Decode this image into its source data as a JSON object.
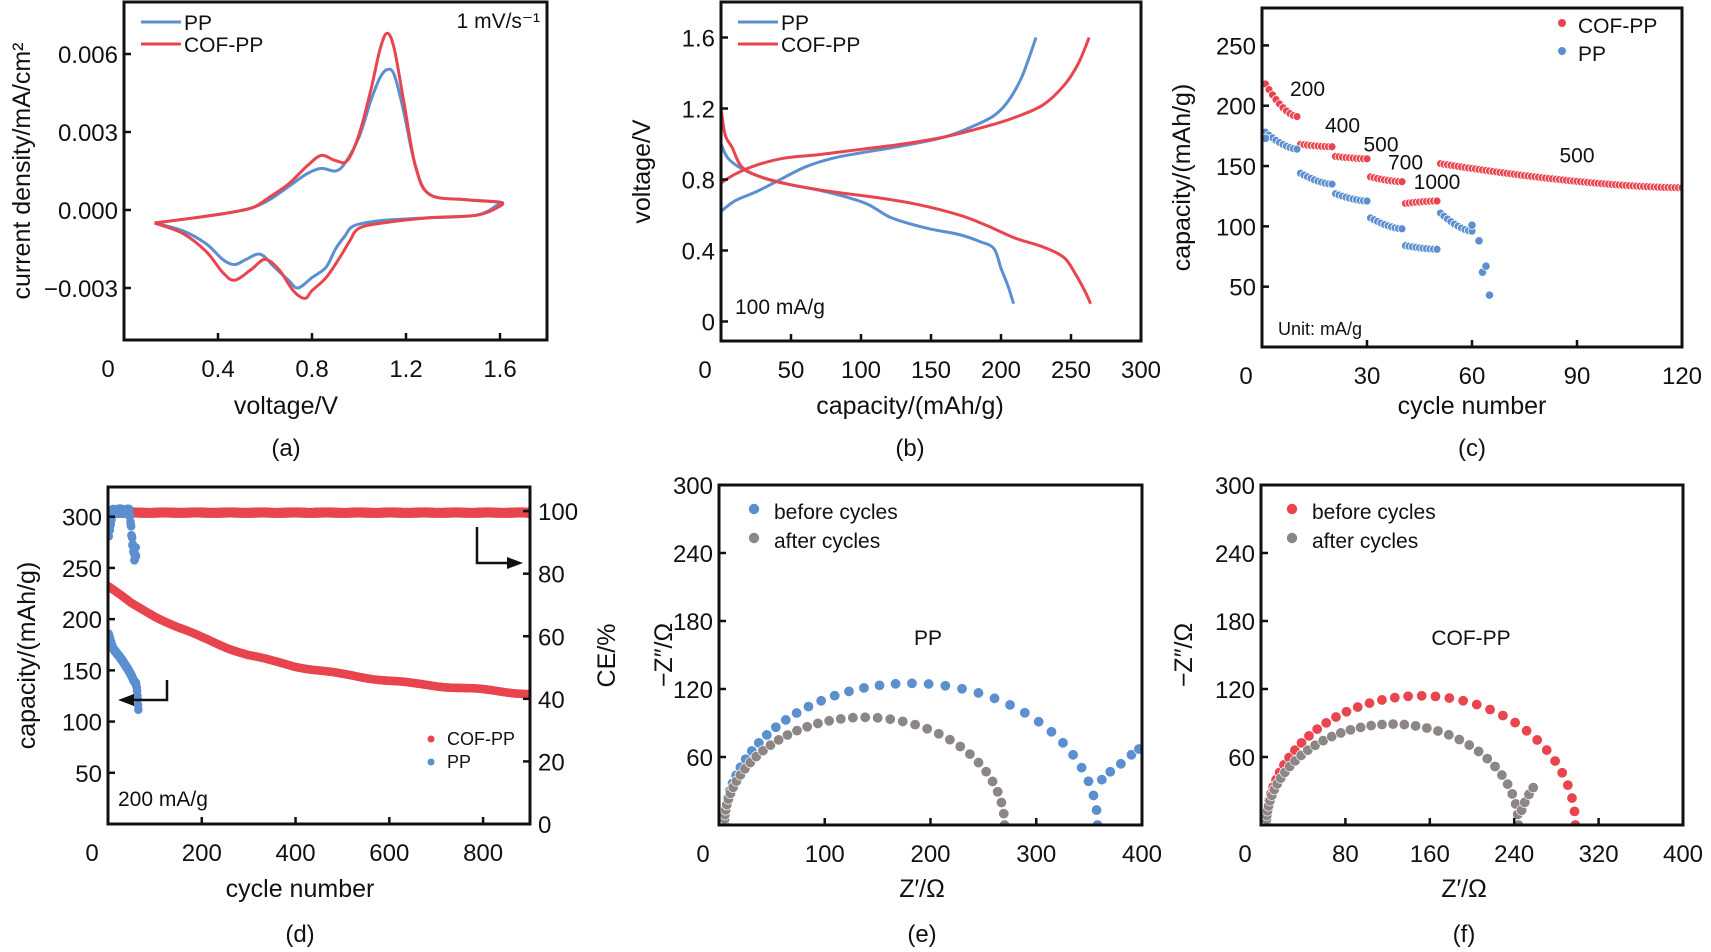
{
  "colors": {
    "blue": "#5b8fd0",
    "red": "#e8454f",
    "gray": "#8c8684",
    "axis": "#111111"
  },
  "chart_data": [
    {
      "id": "a",
      "panel_label": "(a)",
      "type": "line",
      "title": "",
      "xlabel": "voltage/V",
      "ylabel": "current density/mA/cm²",
      "xlim": [
        0,
        1.8
      ],
      "ylim": [
        -0.005,
        0.008
      ],
      "xticks": [
        0,
        0.4,
        0.8,
        1.2,
        1.6
      ],
      "xtick_labels": [
        "0",
        "0.4",
        "0.8",
        "1.2",
        "1.6"
      ],
      "yticks": [
        -0.003,
        0,
        0.003,
        0.006
      ],
      "ytick_labels": [
        "−0.003",
        "0.000",
        "0.003",
        "0.006"
      ],
      "annotation": "1 mV/s⁻¹",
      "legend": {
        "position": "top-left",
        "entries": [
          "PP",
          "COF-PP"
        ]
      },
      "series": [
        {
          "name": "PP",
          "color": "blue",
          "x": [
            0.13,
            0.3,
            0.45,
            0.55,
            0.62,
            0.7,
            0.78,
            0.84,
            0.9,
            0.94,
            1.0,
            1.05,
            1.09,
            1.12,
            1.15,
            1.19,
            1.24,
            1.3,
            1.45,
            1.6,
            1.59,
            1.5,
            1.3,
            1.1,
            0.98,
            0.94,
            0.9,
            0.86,
            0.8,
            0.74,
            0.7,
            0.64,
            0.58,
            0.52,
            0.47,
            0.42,
            0.35,
            0.25,
            0.13
          ],
          "y": [
            -0.0005,
            -0.0003,
            -0.0001,
            0.0001,
            0.0004,
            0.0009,
            0.0014,
            0.0016,
            0.0015,
            0.0018,
            0.0028,
            0.0042,
            0.0051,
            0.0054,
            0.0052,
            0.0038,
            0.0017,
            0.0006,
            0.0004,
            0.0003,
            0.0002,
            -0.0002,
            -0.0003,
            -0.0004,
            -0.0006,
            -0.001,
            -0.0015,
            -0.0022,
            -0.0026,
            -0.003,
            -0.0027,
            -0.0022,
            -0.0017,
            -0.0019,
            -0.0021,
            -0.0019,
            -0.0013,
            -0.0008,
            -0.0005
          ]
        },
        {
          "name": "COF-PP",
          "color": "red",
          "x": [
            0.13,
            0.3,
            0.45,
            0.55,
            0.62,
            0.7,
            0.78,
            0.84,
            0.9,
            0.95,
            1.0,
            1.05,
            1.09,
            1.12,
            1.15,
            1.19,
            1.24,
            1.3,
            1.45,
            1.6,
            1.59,
            1.5,
            1.3,
            1.1,
            1.0,
            0.96,
            0.92,
            0.86,
            0.8,
            0.77,
            0.72,
            0.66,
            0.6,
            0.54,
            0.47,
            0.42,
            0.35,
            0.25,
            0.13
          ],
          "y": [
            -0.0005,
            -0.0003,
            -0.0001,
            0.0001,
            0.0005,
            0.001,
            0.0017,
            0.0021,
            0.0019,
            0.0019,
            0.0029,
            0.0046,
            0.0062,
            0.0068,
            0.0062,
            0.0042,
            0.0017,
            0.0006,
            0.0004,
            0.0003,
            0.0001,
            -0.0002,
            -0.0003,
            -0.0005,
            -0.0007,
            -0.0012,
            -0.0018,
            -0.0026,
            -0.0031,
            -0.0034,
            -0.0031,
            -0.0023,
            -0.0019,
            -0.0023,
            -0.0027,
            -0.0024,
            -0.0016,
            -0.0009,
            -0.0005
          ]
        }
      ]
    },
    {
      "id": "b",
      "panel_label": "(b)",
      "type": "line",
      "title": "",
      "xlabel": "capacity/(mAh/g)",
      "ylabel": "voltage/V",
      "xlim": [
        0,
        300
      ],
      "ylim": [
        -0.11,
        1.8
      ],
      "xticks": [
        0,
        50,
        100,
        150,
        200,
        250,
        300
      ],
      "xtick_labels": [
        "0",
        "50",
        "100",
        "150",
        "200",
        "250",
        "300"
      ],
      "yticks": [
        0,
        0.4,
        0.8,
        1.2,
        1.6
      ],
      "ytick_labels": [
        "0",
        "0.4",
        "0.8",
        "1.2",
        "1.6"
      ],
      "annotation": "100 mA/g",
      "legend": {
        "position": "top-left",
        "entries": [
          "PP",
          "COF-PP"
        ]
      },
      "series": [
        {
          "name": "PP charge",
          "color": "blue",
          "x": [
            0,
            10,
            25,
            40,
            60,
            80,
            100,
            130,
            160,
            180,
            195,
            205,
            215,
            225
          ],
          "y": [
            0.62,
            0.68,
            0.73,
            0.79,
            0.87,
            0.92,
            0.95,
            0.99,
            1.04,
            1.1,
            1.16,
            1.24,
            1.38,
            1.6
          ]
        },
        {
          "name": "PP discharge",
          "color": "blue",
          "x": [
            0,
            5,
            15,
            30,
            50,
            70,
            90,
            105,
            120,
            135,
            150,
            170,
            185,
            195,
            200,
            205,
            209
          ],
          "y": [
            1.0,
            0.92,
            0.86,
            0.81,
            0.77,
            0.74,
            0.7,
            0.66,
            0.59,
            0.55,
            0.52,
            0.49,
            0.45,
            0.41,
            0.3,
            0.2,
            0.1
          ]
        },
        {
          "name": "COF-PP charge",
          "color": "red",
          "x": [
            0,
            10,
            25,
            45,
            70,
            100,
            130,
            160,
            190,
            210,
            230,
            245,
            255,
            263
          ],
          "y": [
            0.78,
            0.83,
            0.88,
            0.92,
            0.94,
            0.97,
            1.0,
            1.04,
            1.1,
            1.15,
            1.22,
            1.33,
            1.45,
            1.6
          ]
        },
        {
          "name": "COF-PP discharge",
          "color": "red",
          "x": [
            0,
            3,
            8,
            15,
            30,
            50,
            80,
            110,
            140,
            170,
            190,
            210,
            230,
            245,
            253,
            260,
            264
          ],
          "y": [
            1.2,
            1.05,
            0.98,
            0.87,
            0.81,
            0.77,
            0.73,
            0.7,
            0.66,
            0.6,
            0.54,
            0.47,
            0.42,
            0.36,
            0.27,
            0.17,
            0.1
          ]
        }
      ]
    },
    {
      "id": "c",
      "panel_label": "(c)",
      "type": "scatter",
      "title": "",
      "xlabel": "cycle number",
      "ylabel": "capacity/(mAh/g)",
      "xlim": [
        0,
        120
      ],
      "ylim": [
        0,
        281
      ],
      "xticks": [
        0,
        30,
        60,
        90,
        120
      ],
      "xtick_labels": [
        "0",
        "30",
        "60",
        "90",
        "120"
      ],
      "yticks": [
        50,
        100,
        150,
        200,
        250
      ],
      "ytick_labels": [
        "50",
        "100",
        "150",
        "200",
        "250"
      ],
      "annotation": "Unit: mA/g",
      "rate_labels": [
        {
          "text": "200",
          "x": 13,
          "y": 208
        },
        {
          "text": "400",
          "x": 23,
          "y": 178
        },
        {
          "text": "500",
          "x": 34,
          "y": 162
        },
        {
          "text": "700",
          "x": 41,
          "y": 147
        },
        {
          "text": "1000",
          "x": 50,
          "y": 131
        },
        {
          "text": "500",
          "x": 90,
          "y": 153
        }
      ],
      "legend": {
        "position": "top-right",
        "entries": [
          "COF-PP",
          "PP"
        ]
      },
      "series": [
        {
          "name": "COF-PP",
          "color": "red",
          "segments": [
            {
              "x0": 1,
              "x1": 10,
              "y0": 218,
              "y1": 191
            },
            {
              "x0": 11,
              "x1": 20,
              "y0": 168,
              "y1": 166
            },
            {
              "x0": 21,
              "x1": 30,
              "y0": 158,
              "y1": 156
            },
            {
              "x0": 31,
              "x1": 40,
              "y0": 141,
              "y1": 137
            },
            {
              "x0": 41,
              "x1": 50,
              "y0": 119,
              "y1": 121
            },
            {
              "x0": 51,
              "x1": 120,
              "y0": 152,
              "y1": 132
            }
          ]
        },
        {
          "name": "PP",
          "color": "blue",
          "segments": [
            {
              "x0": 1,
              "x1": 10,
              "y0": 178,
              "y1": 164
            },
            {
              "x0": 11,
              "x1": 20,
              "y0": 144,
              "y1": 135
            },
            {
              "x0": 21,
              "x1": 30,
              "y0": 127,
              "y1": 121
            },
            {
              "x0": 31,
              "x1": 40,
              "y0": 107,
              "y1": 98
            },
            {
              "x0": 41,
              "x1": 50,
              "y0": 84,
              "y1": 81
            },
            {
              "x0": 51,
              "x1": 60,
              "y0": 111,
              "y1": 96
            }
          ],
          "extra_points": [
            [
              1,
              173
            ],
            [
              62,
              88
            ],
            [
              63,
              62
            ],
            [
              64,
              67
            ],
            [
              65,
              43
            ],
            [
              60,
              101
            ]
          ]
        }
      ]
    },
    {
      "id": "d",
      "panel_label": "(d)",
      "type": "scatter",
      "title": "",
      "xlabel": "cycle number",
      "ylabel": "capacity/(mAh/g)",
      "ylabel_right": "CE/%",
      "xlim": [
        0,
        900
      ],
      "ylim": [
        0,
        329
      ],
      "ylim_right": [
        0,
        107.7
      ],
      "xticks": [
        0,
        200,
        400,
        600,
        800
      ],
      "xtick_labels": [
        "0",
        "200",
        "400",
        "600",
        "800"
      ],
      "yticks": [
        50,
        100,
        150,
        200,
        250,
        300
      ],
      "ytick_labels": [
        "50",
        "100",
        "150",
        "200",
        "250",
        "300"
      ],
      "yticks_right": [
        0,
        20,
        40,
        60,
        80,
        100
      ],
      "ytick_labels_right": [
        "0",
        "20",
        "40",
        "60",
        "80",
        "100"
      ],
      "annotation": "200 mA/g",
      "legend": {
        "position": "bottom-right",
        "entries": [
          "COF-PP",
          "PP"
        ]
      },
      "series": [
        {
          "name": "COF-PP capacity",
          "color": "red",
          "axis": "left",
          "x": [
            1,
            50,
            100,
            150,
            200,
            250,
            300,
            350,
            400,
            450,
            500,
            550,
            600,
            650,
            700,
            750,
            800,
            850,
            900
          ],
          "y": [
            232,
            215,
            203,
            192,
            182,
            173,
            165,
            159,
            154,
            150,
            146,
            143,
            140,
            137,
            135,
            133,
            131,
            129,
            127
          ]
        },
        {
          "name": "COF-PP CE",
          "color": "red",
          "axis": "right",
          "x": [
            1,
            900
          ],
          "y": [
            99.5,
            99.5
          ]
        },
        {
          "name": "PP capacity",
          "color": "blue",
          "axis": "left",
          "x": [
            1,
            10,
            20,
            30,
            40,
            50,
            55,
            60,
            62,
            65
          ],
          "y": [
            186,
            172,
            166,
            160,
            153,
            145,
            140,
            137,
            130,
            110
          ]
        },
        {
          "name": "PP CE",
          "color": "blue",
          "axis": "right",
          "x": [
            1,
            10,
            20,
            30,
            40,
            45,
            48,
            50,
            52,
            55,
            57,
            59,
            60
          ],
          "y": [
            92,
            100,
            100,
            100,
            100,
            100,
            97,
            93,
            90,
            87,
            84,
            88,
            85
          ]
        }
      ]
    },
    {
      "id": "e",
      "panel_label": "(e)",
      "type": "scatter",
      "title": "PP",
      "xlabel": "Z′/Ω",
      "ylabel": "−Z″/Ω",
      "xlim": [
        0,
        400
      ],
      "ylim": [
        0,
        300
      ],
      "xticks": [
        0,
        100,
        200,
        300,
        400
      ],
      "xtick_labels": [
        "0",
        "100",
        "200",
        "300",
        "400"
      ],
      "yticks": [
        60,
        120,
        180,
        240,
        300
      ],
      "ytick_labels": [
        "60",
        "120",
        "180",
        "240",
        "300"
      ],
      "legend": {
        "position": "top-left",
        "entries": [
          "before cycles",
          "after cycles"
        ]
      },
      "series": [
        {
          "name": "before cycles",
          "color": "blue",
          "arc": {
            "x0": 5,
            "x1": 358,
            "peak": 125
          },
          "tail": [
            [
              362,
              40
            ],
            [
              370,
              47
            ],
            [
              380,
              54
            ],
            [
              390,
              62
            ],
            [
              397,
              67
            ]
          ]
        },
        {
          "name": "after cycles",
          "color": "gray",
          "arc": {
            "x0": 5,
            "x1": 270,
            "peak": 95
          }
        }
      ]
    },
    {
      "id": "f",
      "panel_label": "(f)",
      "type": "scatter",
      "title": "COF-PP",
      "xlabel": "Z′/Ω",
      "ylabel": "−Z″/Ω",
      "xlim": [
        0,
        400
      ],
      "ylim": [
        0,
        300
      ],
      "xticks": [
        0,
        80,
        160,
        240,
        320,
        400
      ],
      "xtick_labels": [
        "0",
        "80",
        "160",
        "240",
        "320",
        "400"
      ],
      "yticks": [
        60,
        120,
        180,
        240,
        300
      ],
      "ytick_labels": [
        "60",
        "120",
        "180",
        "240",
        "300"
      ],
      "legend": {
        "position": "top-left",
        "entries": [
          "before cycles",
          "after cycles"
        ]
      },
      "series": [
        {
          "name": "before cycles",
          "color": "red",
          "arc": {
            "x0": 5,
            "x1": 298,
            "peak": 114
          }
        },
        {
          "name": "after cycles",
          "color": "gray",
          "arc": {
            "x0": 5,
            "x1": 244,
            "peak": 89
          },
          "tail": [
            [
              247,
              13
            ],
            [
              250,
              20
            ],
            [
              254,
              27
            ],
            [
              258,
              33
            ]
          ]
        }
      ]
    }
  ]
}
